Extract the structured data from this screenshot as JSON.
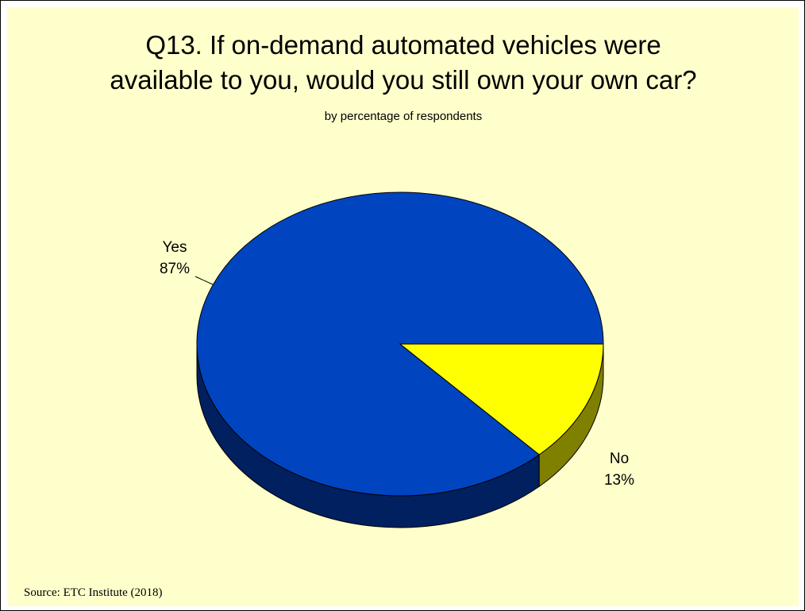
{
  "colors": {
    "background": "#ffffcc",
    "yes_top": "#0044c0",
    "yes_side": "#00205f",
    "no_top": "#ffff00",
    "no_side": "#808000",
    "outline": "#000000"
  },
  "source": "Source:  ETC Institute (2018)",
  "chart_data": {
    "type": "pie",
    "title_lines": [
      "Q13. If on-demand automated vehicles were",
      "available to you, would you still own your own car?"
    ],
    "subtitle": "by percentage of respondents",
    "slices": [
      {
        "name": "Yes",
        "value": 87,
        "label": "87%"
      },
      {
        "name": "No",
        "value": 13,
        "label": "13%"
      }
    ],
    "legend": "none",
    "style": "3d"
  }
}
